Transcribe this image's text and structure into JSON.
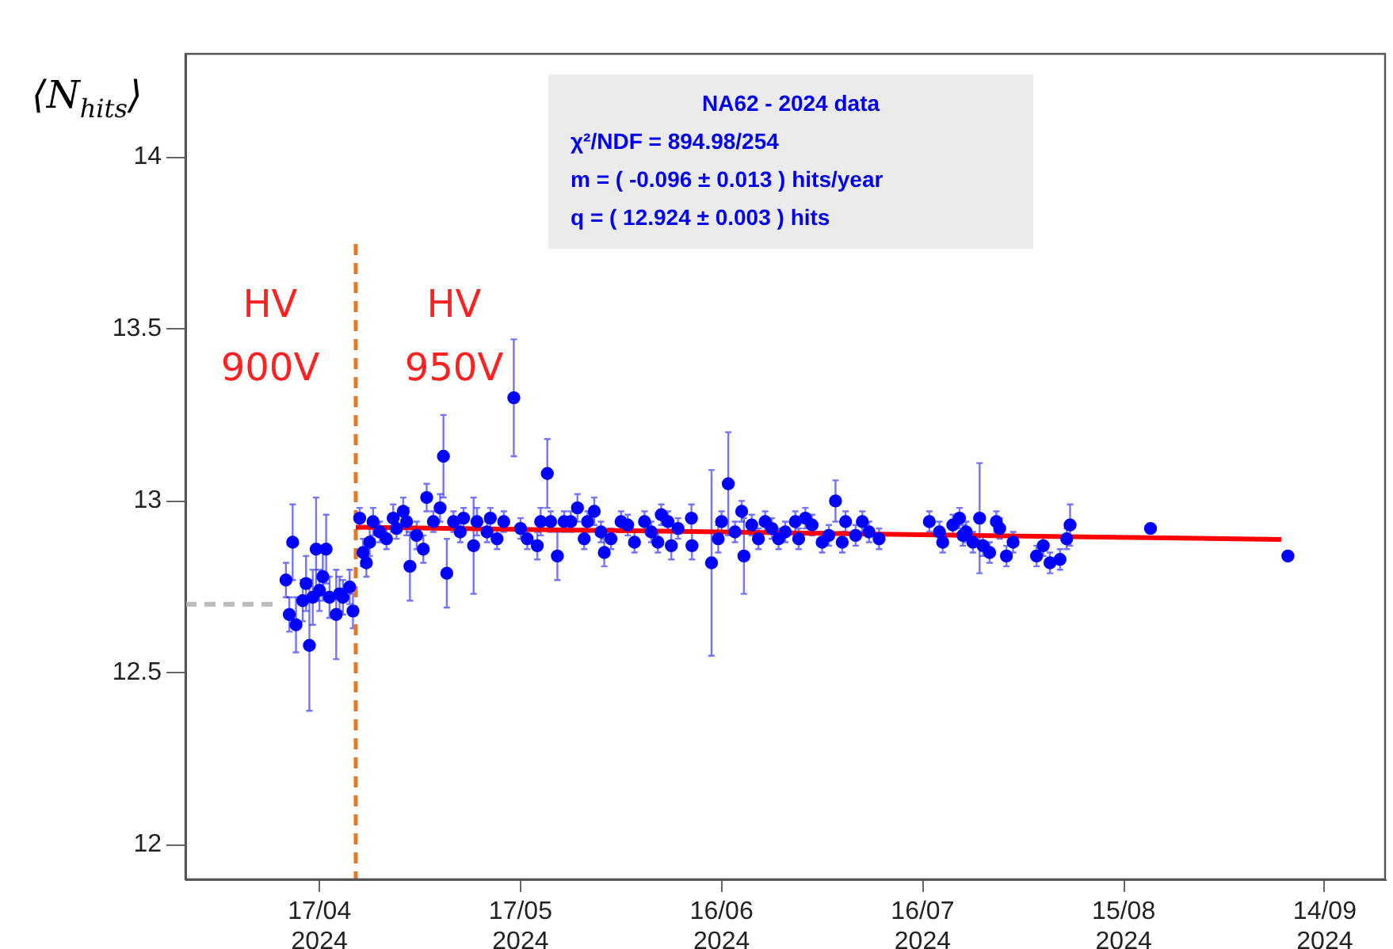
{
  "chart_data": {
    "type": "scatter",
    "ylabel": "⟨N$_{hits}$⟩",
    "annotations": [
      "NA62 - 2024 data",
      "χ²/NDF = 894.98/254",
      "m = ( -0.096 ± 0.013 ) hits/year",
      "q = ( 12.924 ± 0.003 ) hits",
      "HV\n900V",
      "HV\n950V"
    ],
    "xlim": [
      "2024-03-28T00:00",
      "2024-09-23T00:00"
    ],
    "xticks": [
      {
        "value": "2024-04-17",
        "label": "17/04\n2024"
      },
      {
        "value": "2024-05-17",
        "label": "17/05\n2024"
      },
      {
        "value": "2024-06-16",
        "label": "16/06\n2024"
      },
      {
        "value": "2024-07-16",
        "label": "16/07\n2024"
      },
      {
        "value": "2024-08-15",
        "label": "15/08\n2024"
      },
      {
        "value": "2024-09-14",
        "label": "14/09\n2024"
      }
    ],
    "ylim": [
      11.9,
      14.3
    ],
    "yticks": [
      12,
      12.5,
      13,
      13.5,
      14
    ],
    "grid": false,
    "marker": "circle",
    "ref_lines": [
      {
        "axis": "x",
        "value": "2024-04-22T10:00",
        "color": "#e87722",
        "line_style": "dashed"
      }
    ],
    "series": [
      {
        "color": "#0000ff",
        "x": [
          "2024-04-12T00:00",
          "2024-04-12T12:00",
          "2024-04-13T00:00",
          "2024-04-13T12:00",
          "2024-04-14T12:00",
          "2024-04-15T00:00",
          "2024-04-15T12:00",
          "2024-04-16T00:00",
          "2024-04-16T12:00",
          "2024-04-17T00:00",
          "2024-04-17T12:00",
          "2024-04-18T00:00",
          "2024-04-18T12:00",
          "2024-04-19T12:00",
          "2024-04-20T00:00",
          "2024-04-20T12:00",
          "2024-04-21T12:00",
          "2024-04-22T00:00",
          "2024-04-23T00:00",
          "2024-04-23T12:00",
          "2024-04-24T00:00",
          "2024-04-24T12:00",
          "2024-04-25T00:00",
          "2024-04-26T00:00",
          "2024-04-27T00:00",
          "2024-04-28T00:00",
          "2024-04-28T12:00",
          "2024-04-29T12:00",
          "2024-04-30T00:00",
          "2024-04-30T12:00",
          "2024-05-01T12:00",
          "2024-05-02T12:00",
          "2024-05-03T00:00",
          "2024-05-04T00:00",
          "2024-05-05T00:00",
          "2024-05-05T12:00",
          "2024-05-06T00:00",
          "2024-05-07T00:00",
          "2024-05-08T00:00",
          "2024-05-08T12:00",
          "2024-05-10T00:00",
          "2024-05-10T12:00",
          "2024-05-12T00:00",
          "2024-05-12T12:00",
          "2024-05-13T12:00",
          "2024-05-14T12:00",
          "2024-05-16T00:00",
          "2024-05-17T00:00",
          "2024-05-18T00:00",
          "2024-05-19T12:00",
          "2024-05-20T00:00",
          "2024-05-21T00:00",
          "2024-05-21T12:00",
          "2024-05-22T12:00",
          "2024-05-23T12:00",
          "2024-05-24T12:00",
          "2024-05-25T12:00",
          "2024-05-26T12:00",
          "2024-05-27T00:00",
          "2024-05-28T00:00",
          "2024-05-29T00:00",
          "2024-05-29T12:00",
          "2024-05-30T12:00",
          "2024-06-01T00:00",
          "2024-06-02T00:00",
          "2024-06-03T00:00",
          "2024-06-04T12:00",
          "2024-06-05T12:00",
          "2024-06-06T12:00",
          "2024-06-07T00:00",
          "2024-06-08T00:00",
          "2024-06-08T12:00",
          "2024-06-09T12:00",
          "2024-06-11T12:00",
          "2024-06-11T14:00",
          "2024-06-14T12:00",
          "2024-06-15T12:00",
          "2024-06-16T00:00",
          "2024-06-17T00:00",
          "2024-06-18T00:00",
          "2024-06-19T00:00",
          "2024-06-19T08:00",
          "2024-06-20T12:00",
          "2024-06-21T12:00",
          "2024-06-22T12:00",
          "2024-06-23T12:00",
          "2024-06-24T12:00",
          "2024-06-25T12:00",
          "2024-06-27T00:00",
          "2024-06-27T12:00",
          "2024-06-28T12:00",
          "2024-06-29T12:00",
          "2024-07-01T00:00",
          "2024-07-02T00:00",
          "2024-07-03T00:00",
          "2024-07-04T00:00",
          "2024-07-04T12:00",
          "2024-07-06T00:00",
          "2024-07-07T00:00",
          "2024-07-08T00:00",
          "2024-07-09T12:00",
          "2024-07-17T00:00",
          "2024-07-18T12:00",
          "2024-07-19T00:00",
          "2024-07-20T12:00",
          "2024-07-21T12:00",
          "2024-07-22T00:00",
          "2024-07-22T12:00",
          "2024-07-23T12:00",
          "2024-07-24T12:00",
          "2024-07-25T00:00",
          "2024-07-26T00:00",
          "2024-07-27T00:00",
          "2024-07-27T12:00",
          "2024-07-28T12:00",
          "2024-07-29T12:00",
          "2024-08-02T00:00",
          "2024-08-03T00:00",
          "2024-08-04T00:00",
          "2024-08-05T12:00",
          "2024-08-06T12:00",
          "2024-08-07T00:00",
          "2024-08-19T00:00",
          "2024-09-08T12:00"
        ],
        "values": [
          12.77,
          12.67,
          12.88,
          12.64,
          12.71,
          12.76,
          12.58,
          12.72,
          12.86,
          12.74,
          12.78,
          12.86,
          12.72,
          12.67,
          12.73,
          12.72,
          12.75,
          12.68,
          12.95,
          12.85,
          12.82,
          12.88,
          12.94,
          12.91,
          12.89,
          12.95,
          12.92,
          12.97,
          12.94,
          12.81,
          12.9,
          12.86,
          13.01,
          12.94,
          12.98,
          13.13,
          12.79,
          12.94,
          12.91,
          12.95,
          12.87,
          12.94,
          12.91,
          12.95,
          12.89,
          12.94,
          13.3,
          12.92,
          12.89,
          12.87,
          12.94,
          13.08,
          12.94,
          12.84,
          12.94,
          12.94,
          12.98,
          12.89,
          12.94,
          12.97,
          12.91,
          12.85,
          12.89,
          12.94,
          12.93,
          12.88,
          12.94,
          12.91,
          12.88,
          12.96,
          12.94,
          12.87,
          12.92,
          12.95,
          12.87,
          12.82,
          12.89,
          12.94,
          13.05,
          12.91,
          12.97,
          12.84,
          12.93,
          12.89,
          12.94,
          12.92,
          12.89,
          12.91,
          12.94,
          12.89,
          12.95,
          12.93,
          12.88,
          12.9,
          13.0,
          12.88,
          12.94,
          12.9,
          12.94,
          12.91,
          12.89,
          12.94,
          12.91,
          12.88,
          12.93,
          12.95,
          12.9,
          12.91,
          12.88,
          12.95,
          12.87,
          12.85,
          12.94,
          12.92,
          12.84,
          12.88,
          12.84,
          12.87,
          12.82,
          12.83,
          12.89,
          12.93,
          12.92,
          12.84
        ],
        "errors": [
          0.05,
          0.05,
          0.11,
          0.08,
          0.06,
          0.08,
          0.19,
          0.08,
          0.15,
          0.06,
          0.07,
          0.1,
          0.06,
          0.13,
          0.05,
          0.05,
          0.05,
          0.05,
          0.03,
          0.04,
          0.04,
          0.04,
          0.04,
          0.03,
          0.03,
          0.04,
          0.03,
          0.04,
          0.04,
          0.1,
          0.04,
          0.04,
          0.04,
          0.03,
          0.04,
          0.12,
          0.1,
          0.03,
          0.03,
          0.03,
          0.14,
          0.04,
          0.03,
          0.03,
          0.03,
          0.03,
          0.17,
          0.03,
          0.03,
          0.04,
          0.04,
          0.1,
          0.03,
          0.07,
          0.03,
          0.03,
          0.04,
          0.03,
          0.03,
          0.04,
          0.03,
          0.04,
          0.03,
          0.03,
          0.03,
          0.03,
          0.03,
          0.03,
          0.03,
          0.03,
          0.03,
          0.04,
          0.03,
          0.04,
          0.04,
          0.27,
          0.04,
          0.03,
          0.15,
          0.03,
          0.03,
          0.11,
          0.03,
          0.03,
          0.03,
          0.03,
          0.03,
          0.03,
          0.03,
          0.03,
          0.03,
          0.03,
          0.03,
          0.03,
          0.06,
          0.03,
          0.03,
          0.03,
          0.03,
          0.03,
          0.03,
          0.03,
          0.03,
          0.03,
          0.03,
          0.03,
          0.03,
          0.03,
          0.03,
          0.16,
          0.03,
          0.03,
          0.03,
          0.03,
          0.03,
          0.03,
          0.03,
          0.03,
          0.03,
          0.03,
          0.03,
          0.06,
          null,
          null
        ]
      },
      {
        "type": "line",
        "color": "#ff0000",
        "x": [
          "2024-04-22T10:00",
          "2024-09-07T12:00"
        ],
        "values": [
          12.924,
          12.888
        ],
        "marker": "none"
      },
      {
        "type": "line",
        "color": "#bbbbbb",
        "x": [
          "2024-03-28T00:00",
          "2024-04-11T00:00"
        ],
        "values": [
          12.7,
          12.7
        ],
        "marker": "none",
        "line_style": "dashed"
      }
    ]
  }
}
